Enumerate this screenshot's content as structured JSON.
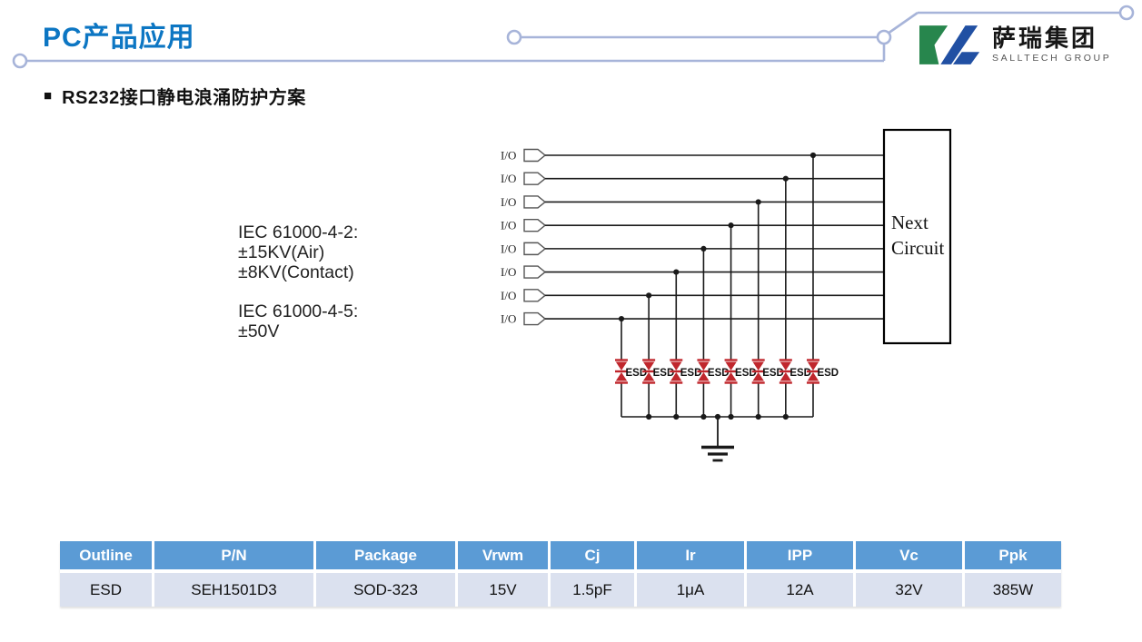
{
  "slide": {
    "title": "PC产品应用"
  },
  "logo": {
    "name_cn": "萨瑞集团",
    "name_en": "SALLTECH GROUP"
  },
  "section": {
    "bullet": "■",
    "heading": "RS232接口静电浪涌防护方案"
  },
  "spec_note": {
    "block1": [
      "IEC 61000-4-2:",
      "±15KV(Air)",
      "±8KV(Contact)"
    ],
    "block2": [
      "IEC 61000-4-5:",
      "±50V"
    ]
  },
  "diagram": {
    "io_label": "I/O",
    "io_count": 8,
    "esd_label": "ESD",
    "next_circuit_lines": [
      "Next",
      "Circuit"
    ]
  },
  "table": {
    "headers": [
      "Outline",
      "P/N",
      "Package",
      "Vrwm",
      "Cj",
      "Ir",
      "IPP",
      "Vc",
      "Ppk"
    ],
    "row": [
      "ESD",
      "SEH1501D3",
      "SOD-323",
      "15V",
      "1.5pF",
      "1μA",
      "12A",
      "32V",
      "385W"
    ]
  },
  "colors": {
    "title_blue": "#0c76c3",
    "decor_line": "#a7b4d9",
    "table_header_bg": "#5b9bd5",
    "table_row_bg": "#dbe1ef",
    "diode_red": "#c0272d",
    "logo_green": "#27864d",
    "logo_blue": "#2150a3",
    "ink": "#1a1a1a"
  }
}
